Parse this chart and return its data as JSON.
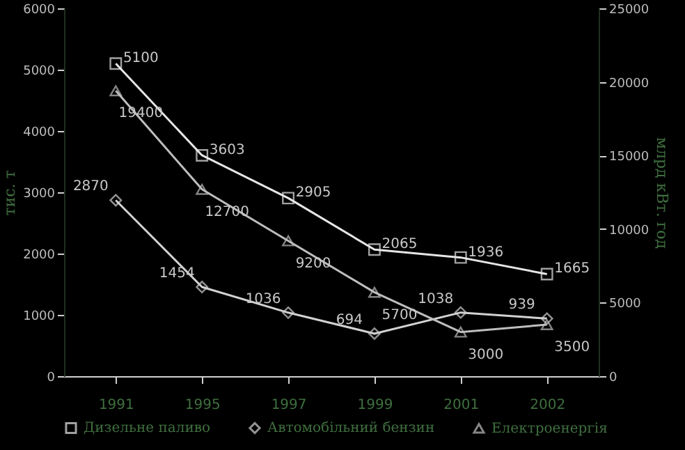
{
  "chart_data": {
    "type": "line",
    "categories": [
      "1991",
      "1995",
      "1997",
      "1999",
      "2001",
      "2002"
    ],
    "ylabel": "тис. т",
    "y2label": "млрд кВт. год",
    "ylim": [
      0,
      6000
    ],
    "yticks": [
      0,
      1000,
      2000,
      3000,
      4000,
      5000,
      6000
    ],
    "y2lim": [
      0,
      25000
    ],
    "y2ticks": [
      0,
      5000,
      10000,
      15000,
      20000,
      25000
    ],
    "grid": false,
    "legend": "bottom",
    "data_labels": true,
    "line_style": "solid",
    "series": [
      {
        "name": "Дизельне паливо",
        "color": "#e6e6e6",
        "marker": "square",
        "values": [
          5100,
          3603,
          2905,
          2065,
          1936,
          1665
        ]
      },
      {
        "name": "Автомобільний бензин",
        "color": "#d2d2d2",
        "marker": "diamond",
        "values": [
          2870,
          1454,
          1036,
          694,
          1038,
          939
        ]
      },
      {
        "name": "Електроенергія",
        "color": "#bebebe",
        "marker": "triangle",
        "axis": "y2",
        "values": [
          19400,
          12700,
          9200,
          5700,
          3000,
          3500
        ]
      }
    ]
  }
}
